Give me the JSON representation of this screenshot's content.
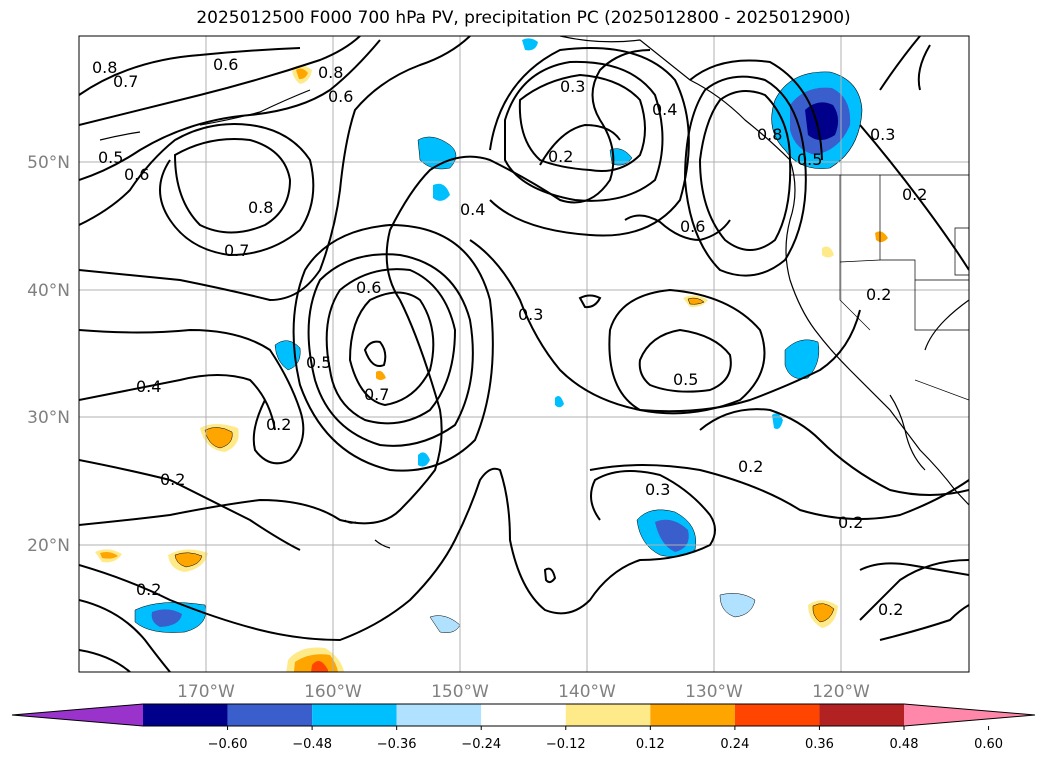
{
  "title": "2025012500 F000 700 hPa PV, precipitation PC (2025012800 - 2025012900)",
  "lat_labels": [
    "50°N",
    "40°N",
    "30°N",
    "20°N"
  ],
  "lon_labels": [
    "170°W",
    "160°W",
    "150°W",
    "140°W",
    "130°W",
    "120°W"
  ],
  "colorbar": {
    "ticks": [
      "−0.60",
      "−0.48",
      "−0.36",
      "−0.24",
      "−0.12",
      "0.12",
      "0.24",
      "0.36",
      "0.48",
      "0.60"
    ],
    "colors": [
      "#9933cc",
      "#00008b",
      "#3a5fcd",
      "#00bfff",
      "#b0e2ff",
      "#ffffff",
      "#ffea8a",
      "#ffa500",
      "#ff4500",
      "#b22222",
      "#ff88aa"
    ]
  },
  "contour_labels": [
    "0.8",
    "0.7",
    "0.6",
    "0.8",
    "0.6",
    "0.5",
    "0.6",
    "0.8",
    "0.7",
    "0.3",
    "0.4",
    "0.8",
    "0.2",
    "0.4",
    "0.3",
    "0.6",
    "0.5",
    "0.3",
    "0.2",
    "0.6",
    "0.5",
    "0.7",
    "0.4",
    "0.2",
    "0.2",
    "0.5",
    "0.2",
    "0.3",
    "0.2",
    "0.2",
    "0.2",
    "0.2"
  ]
}
